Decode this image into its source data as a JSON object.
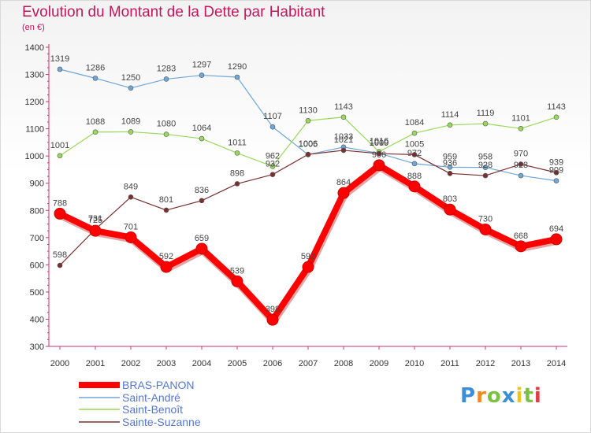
{
  "chart_data": {
    "type": "line",
    "title": "Evolution du Montant de la Dette par Habitant",
    "subtitle": "(en €)",
    "xlabel": "",
    "ylabel": "",
    "ylim": [
      300,
      1400
    ],
    "yticks": [
      300,
      400,
      500,
      600,
      700,
      800,
      900,
      1000,
      1100,
      1200,
      1300,
      1400
    ],
    "categories": [
      "2000",
      "2001",
      "2002",
      "2003",
      "2004",
      "2005",
      "2006",
      "2007",
      "2008",
      "2009",
      "2010",
      "2011",
      "2012",
      "2013",
      "2014"
    ],
    "grid": false,
    "legend_position": "bottom-left",
    "series": [
      {
        "name": "BRAS-PANON",
        "color": "#ff0000",
        "values": [
          788,
          725,
          701,
          592,
          659,
          539,
          398,
          592,
          864,
          966,
          888,
          803,
          730,
          668,
          694
        ]
      },
      {
        "name": "Saint-André",
        "color": "#6ea6d8",
        "values": [
          1319,
          1286,
          1250,
          1283,
          1297,
          1290,
          1107,
          1005,
          1033,
          1010,
          972,
          959,
          958,
          928,
          909
        ]
      },
      {
        "name": "Saint-Benoît",
        "color": "#99d85a",
        "values": [
          1001,
          1088,
          1089,
          1080,
          1064,
          1011,
          962,
          1130,
          1143,
          1016,
          1084,
          1114,
          1119,
          1101,
          1143
        ]
      },
      {
        "name": "Sainte-Suzanne",
        "color": "#7a2f2f",
        "values": [
          598,
          731,
          849,
          801,
          836,
          898,
          932,
          1006,
          1021,
          1009,
          1005,
          936,
          928,
          970,
          939
        ]
      }
    ]
  },
  "logo": {
    "letters": [
      {
        "ch": "P",
        "color": "#3a8fd6"
      },
      {
        "ch": "r",
        "color": "#f08a1c"
      },
      {
        "ch": "o",
        "color": "#7cc242"
      },
      {
        "ch": "x",
        "color": "#3a8fd6"
      },
      {
        "ch": "i",
        "color": "#f0c419"
      },
      {
        "ch": "t",
        "color": "#7cc242"
      },
      {
        "ch": "i",
        "color": "#e63946"
      }
    ]
  }
}
